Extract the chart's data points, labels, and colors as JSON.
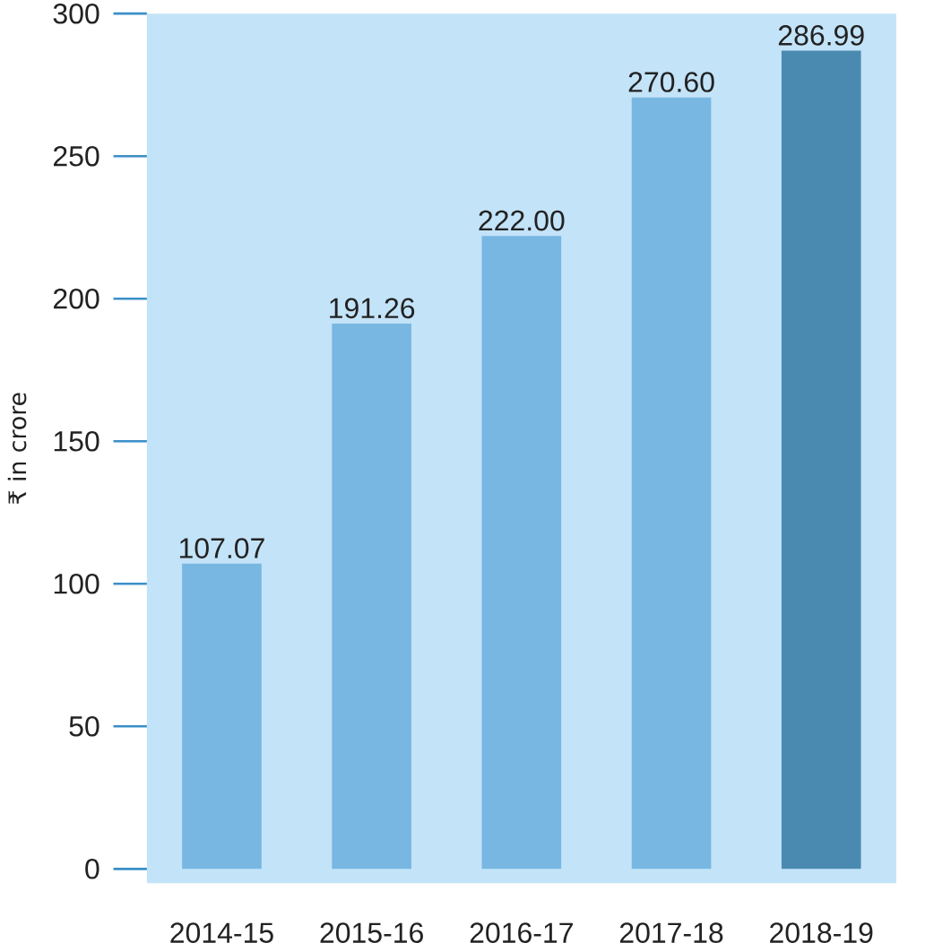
{
  "chart_data": {
    "type": "bar",
    "ylabel": "₹ in crore",
    "categories": [
      "2014-15",
      "2015-16",
      "2016-17",
      "2017-18",
      "2018-19"
    ],
    "values": [
      107.07,
      191.26,
      222.0,
      270.6,
      286.99
    ],
    "value_labels": [
      "107.07",
      "191.26",
      "222.00",
      "270.60",
      "286.99"
    ],
    "colors": [
      "#78b7e2",
      "#78b7e2",
      "#78b7e2",
      "#78b7e2",
      "#4a8ab0"
    ],
    "ylim": [
      -5,
      300
    ],
    "yticks": [
      0,
      50,
      100,
      150,
      200,
      250,
      300
    ],
    "grid": false
  }
}
